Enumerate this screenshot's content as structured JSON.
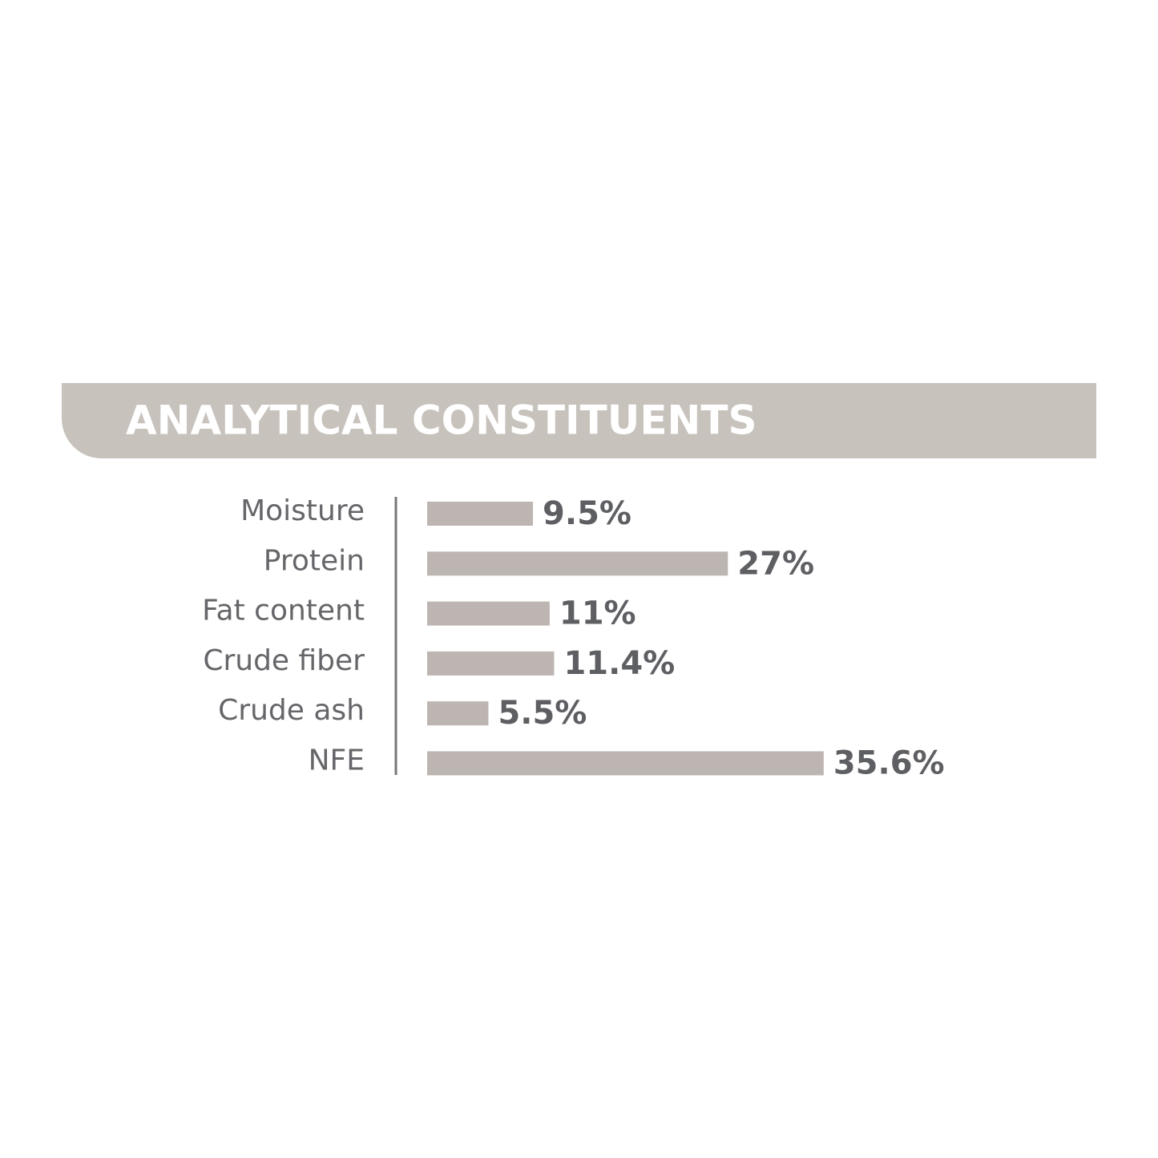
{
  "chart_data": {
    "type": "bar",
    "orientation": "horizontal",
    "title": "ANALYTICAL CONSTITUENTS",
    "categories": [
      "Moisture",
      "Protein",
      "Fat content",
      "Crude fiber",
      "Crude ash",
      "NFE"
    ],
    "values": [
      9.5,
      27,
      11,
      11.4,
      5.5,
      35.6
    ],
    "value_labels": [
      "9.5%",
      "27%",
      "11%",
      "11.4%",
      "5.5%",
      "35.6%"
    ],
    "color": "#bdb5b1"
  }
}
